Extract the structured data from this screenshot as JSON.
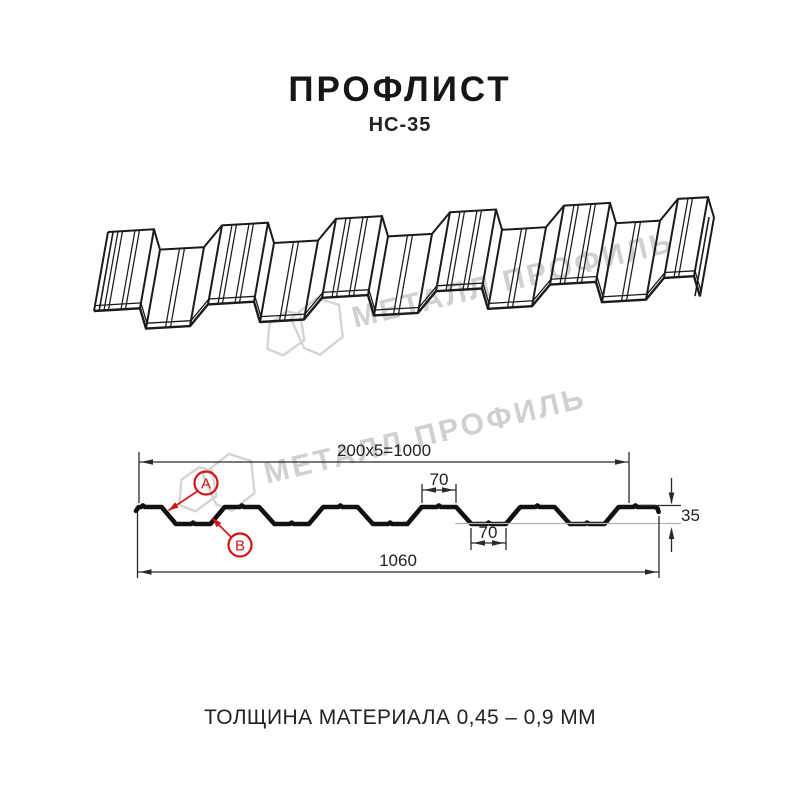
{
  "header": {
    "title": "ПРОФЛИСТ",
    "subtitle": "НС-35"
  },
  "footer": {
    "thickness_note": "ТОЛЩИНА МАТЕРИАЛА 0,45 – 0,9 ММ"
  },
  "watermark": {
    "text": "МЕТАЛЛ ПРОФИЛЬ",
    "color": "#d0d0d0"
  },
  "section": {
    "dim_coverage": "200x5=1000",
    "dim_crest_width": "70",
    "dim_valley_width": "70",
    "dim_height": "35",
    "dim_overall_width": "1060",
    "label_a": "A",
    "label_b": "B"
  },
  "colors": {
    "line": "#1b1b1b",
    "accent_red": "#d31414"
  }
}
